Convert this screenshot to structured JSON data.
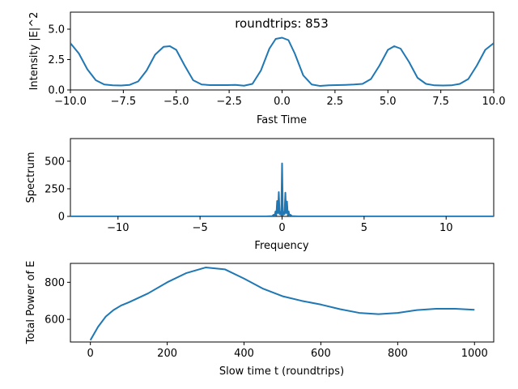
{
  "chart_data": [
    {
      "type": "line",
      "annotation": "roundtrips: 853",
      "xlabel": "Fast Time",
      "ylabel": "Intensity |E|^2",
      "xlim": [
        -10,
        10
      ],
      "ylim": [
        0,
        6.4
      ],
      "xticks": [
        -10.0,
        -7.5,
        -5.0,
        -2.5,
        0.0,
        2.5,
        5.0,
        7.5,
        10.0
      ],
      "xtick_labels": [
        "−10.0",
        "−7.5",
        "−5.0",
        "−2.5",
        "0.0",
        "2.5",
        "5.0",
        "7.5",
        "10.0"
      ],
      "yticks": [
        0.0,
        2.5,
        5.0
      ],
      "ytick_labels": [
        "0.0",
        "2.5",
        "5.0"
      ],
      "grid": false,
      "color": "#1f77b4",
      "series": [
        {
          "x": [
            -10.0,
            -9.6,
            -9.2,
            -8.8,
            -8.4,
            -8.0,
            -7.6,
            -7.2,
            -6.8,
            -6.4,
            -6.0,
            -5.6,
            -5.3,
            -5.0,
            -4.6,
            -4.2,
            -3.8,
            -3.4,
            -3.0,
            -2.6,
            -2.2,
            -1.8,
            -1.4,
            -1.0,
            -0.6,
            -0.3,
            0.0,
            0.3,
            0.6,
            1.0,
            1.4,
            1.8,
            2.2,
            2.6,
            3.0,
            3.4,
            3.8,
            4.2,
            4.6,
            5.0,
            5.3,
            5.6,
            6.0,
            6.4,
            6.8,
            7.2,
            7.6,
            8.0,
            8.4,
            8.8,
            9.2,
            9.6,
            10.0
          ],
          "y": [
            3.85,
            3.0,
            1.7,
            0.8,
            0.45,
            0.38,
            0.37,
            0.42,
            0.7,
            1.6,
            2.9,
            3.55,
            3.6,
            3.3,
            2.0,
            0.8,
            0.45,
            0.4,
            0.4,
            0.4,
            0.42,
            0.35,
            0.5,
            1.6,
            3.4,
            4.2,
            4.3,
            4.1,
            3.0,
            1.2,
            0.45,
            0.33,
            0.38,
            0.4,
            0.42,
            0.45,
            0.5,
            0.9,
            2.0,
            3.3,
            3.6,
            3.4,
            2.3,
            1.0,
            0.5,
            0.38,
            0.37,
            0.38,
            0.5,
            0.9,
            2.0,
            3.3,
            3.85
          ]
        }
      ]
    },
    {
      "type": "line",
      "xlabel": "Frequency",
      "ylabel": "Spectrum",
      "xlim": [
        -12.9,
        12.9
      ],
      "ylim": [
        0,
        705
      ],
      "xticks": [
        -10,
        -5,
        0,
        5,
        10
      ],
      "xtick_labels": [
        "−10",
        "−5",
        "0",
        "5",
        "10"
      ],
      "yticks": [
        0,
        250,
        500
      ],
      "ytick_labels": [
        "0",
        "250",
        "500"
      ],
      "grid": false,
      "color": "#1f77b4",
      "series": [
        {
          "x": [
            -12.9,
            -1.0,
            -0.6,
            -0.5,
            -0.45,
            -0.4,
            -0.35,
            -0.3,
            -0.25,
            -0.2,
            -0.15,
            -0.1,
            -0.05,
            0.0,
            0.05,
            0.1,
            0.15,
            0.2,
            0.25,
            0.3,
            0.35,
            0.4,
            0.45,
            0.5,
            0.6,
            1.0,
            12.9
          ],
          "y": [
            0,
            0,
            3,
            15,
            5,
            45,
            10,
            140,
            30,
            220,
            20,
            40,
            10,
            480,
            10,
            40,
            20,
            215,
            30,
            135,
            10,
            45,
            5,
            15,
            3,
            0,
            0
          ]
        }
      ]
    },
    {
      "type": "line",
      "xlabel": "Slow time t (roundtrips)",
      "ylabel": "Total Power of E",
      "xlim": [
        -52,
        1050
      ],
      "ylim": [
        478,
        902
      ],
      "xticks": [
        0,
        200,
        400,
        600,
        800,
        1000
      ],
      "xtick_labels": [
        "0",
        "200",
        "400",
        "600",
        "800",
        "1000"
      ],
      "yticks": [
        600,
        800
      ],
      "ytick_labels": [
        "600",
        "800"
      ],
      "grid": false,
      "color": "#1f77b4",
      "series": [
        {
          "x": [
            0,
            20,
            40,
            60,
            80,
            100,
            150,
            200,
            250,
            300,
            350,
            400,
            450,
            500,
            550,
            600,
            650,
            700,
            750,
            800,
            850,
            900,
            950,
            1000
          ],
          "y": [
            488,
            560,
            615,
            650,
            675,
            692,
            740,
            800,
            850,
            880,
            870,
            820,
            765,
            725,
            700,
            680,
            655,
            635,
            628,
            635,
            650,
            657,
            657,
            652
          ]
        }
      ]
    }
  ]
}
